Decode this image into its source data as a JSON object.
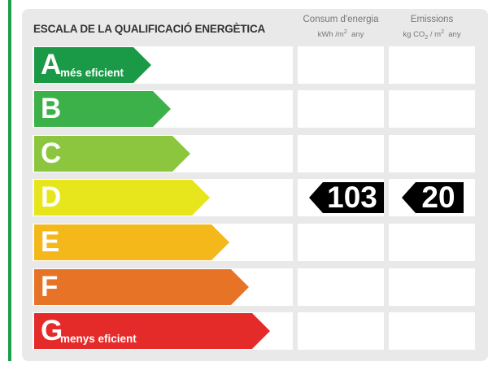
{
  "title": "ESCALA DE LA QUALIFICACIÓ ENERGÈTICA",
  "columns": {
    "consum": {
      "label": "Consum d'energia",
      "unit_base": "kWh /m",
      "unit_sup": "2",
      "unit_tail": "  any"
    },
    "emissions": {
      "label": "Emissions",
      "unit_base": "kg CO",
      "unit_sub": "2",
      "unit_mid": " / m",
      "unit_sup": "2",
      "unit_tail": "  any"
    }
  },
  "ratings": [
    {
      "letter": "A",
      "note": "més eficient",
      "color": "#1a9a47"
    },
    {
      "letter": "B",
      "note": "",
      "color": "#3cb049"
    },
    {
      "letter": "C",
      "note": "",
      "color": "#8cc63e"
    },
    {
      "letter": "D",
      "note": "",
      "color": "#e7e61d"
    },
    {
      "letter": "E",
      "note": "",
      "color": "#f4b81b"
    },
    {
      "letter": "F",
      "note": "",
      "color": "#e77426"
    },
    {
      "letter": "G",
      "note": "menys eficient",
      "color": "#e52a2a"
    }
  ],
  "current": {
    "rating": "D",
    "consum_value": "103",
    "emissions_value": "20"
  },
  "colors": {
    "frame_green": "#1e9e4a",
    "panel": "#e9e9e9",
    "tag": "#000000"
  }
}
